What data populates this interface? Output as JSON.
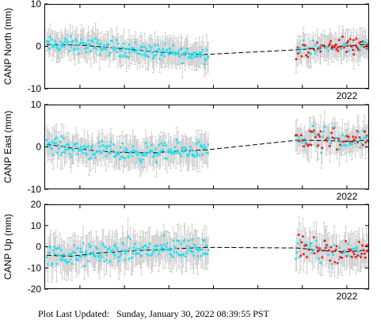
{
  "footer": {
    "label": "Plot Last Updated:",
    "timestamp": "Sunday, January 30, 2022 08:39:55 PST"
  },
  "colors": {
    "old_points": "#22e0f0",
    "recent_points": "#e81c1c",
    "error_bars": "#c8c8c8",
    "trend": "#000000"
  },
  "chart_data": [
    {
      "type": "scatter",
      "ylabel": "CANP North (mm)",
      "ylim": [
        -10,
        10
      ],
      "yticks": [
        -10,
        0,
        10
      ],
      "xlim": [
        2015.2,
        2022.5
      ],
      "xtick_labels": [
        {
          "x": 2022.0,
          "label": "2022"
        }
      ],
      "trend_points": [
        [
          2015.25,
          0.4
        ],
        [
          2016.0,
          0.3
        ],
        [
          2016.6,
          -0.2
        ],
        [
          2017.2,
          -0.8
        ],
        [
          2017.8,
          -1.4
        ],
        [
          2018.3,
          -1.8
        ],
        [
          2018.85,
          -1.9
        ],
        [
          2020.9,
          -0.8
        ],
        [
          2021.4,
          -0.4
        ],
        [
          2022.0,
          0.1
        ],
        [
          2022.5,
          0.5
        ]
      ],
      "error_bar": 2.8,
      "segments": [
        {
          "x0": 2015.25,
          "x1": 2018.9,
          "n": 200,
          "series": "old",
          "amp": 1.6
        },
        {
          "x0": 2020.85,
          "x1": 2021.9,
          "n": 55,
          "series": "mixed",
          "amp": 1.7
        },
        {
          "x0": 2021.9,
          "x1": 2022.5,
          "n": 35,
          "series": "mixed",
          "amp": 1.5
        }
      ]
    },
    {
      "type": "scatter",
      "ylabel": "CANP East (mm)",
      "ylim": [
        -10,
        10
      ],
      "yticks": [
        -10,
        0,
        10
      ],
      "xlim": [
        2015.2,
        2022.5
      ],
      "xtick_labels": [
        {
          "x": 2022.0,
          "label": "2022"
        }
      ],
      "trend_points": [
        [
          2015.25,
          0.6
        ],
        [
          2015.8,
          -0.2
        ],
        [
          2016.4,
          -1.0
        ],
        [
          2017.0,
          -1.3
        ],
        [
          2017.6,
          -1.4
        ],
        [
          2018.2,
          -1.0
        ],
        [
          2018.85,
          -0.7
        ],
        [
          2020.9,
          1.6
        ],
        [
          2021.5,
          1.5
        ],
        [
          2022.0,
          1.3
        ],
        [
          2022.5,
          1.6
        ]
      ],
      "error_bar": 3.0,
      "segments": [
        {
          "x0": 2015.25,
          "x1": 2018.9,
          "n": 200,
          "series": "old",
          "amp": 1.8
        },
        {
          "x0": 2020.85,
          "x1": 2021.9,
          "n": 55,
          "series": "mixed",
          "amp": 2.6
        },
        {
          "x0": 2021.9,
          "x1": 2022.5,
          "n": 35,
          "series": "mixed",
          "amp": 1.8
        }
      ]
    },
    {
      "type": "scatter",
      "ylabel": "CANP Up (mm)",
      "ylim": [
        -20,
        20
      ],
      "yticks": [
        -20,
        -10,
        0,
        10,
        20
      ],
      "xlim": [
        2015.2,
        2022.5
      ],
      "xtick_labels": [
        {
          "x": 2022.0,
          "label": "2022"
        }
      ],
      "trend_points": [
        [
          2015.25,
          -4.0
        ],
        [
          2015.8,
          -4.5
        ],
        [
          2016.4,
          -3.0
        ],
        [
          2017.0,
          -2.2
        ],
        [
          2017.6,
          -1.5
        ],
        [
          2018.3,
          -0.8
        ],
        [
          2018.85,
          -0.3
        ],
        [
          2020.9,
          -0.6
        ],
        [
          2021.4,
          -1.8
        ],
        [
          2022.0,
          -2.4
        ],
        [
          2022.5,
          -1.5
        ]
      ],
      "error_bar": 7.0,
      "segments": [
        {
          "x0": 2015.25,
          "x1": 2018.9,
          "n": 200,
          "series": "old",
          "amp": 4.5
        },
        {
          "x0": 2020.85,
          "x1": 2021.9,
          "n": 55,
          "series": "mixed",
          "amp": 4.5
        },
        {
          "x0": 2021.9,
          "x1": 2022.5,
          "n": 35,
          "series": "mixed",
          "amp": 3.5
        }
      ]
    }
  ]
}
